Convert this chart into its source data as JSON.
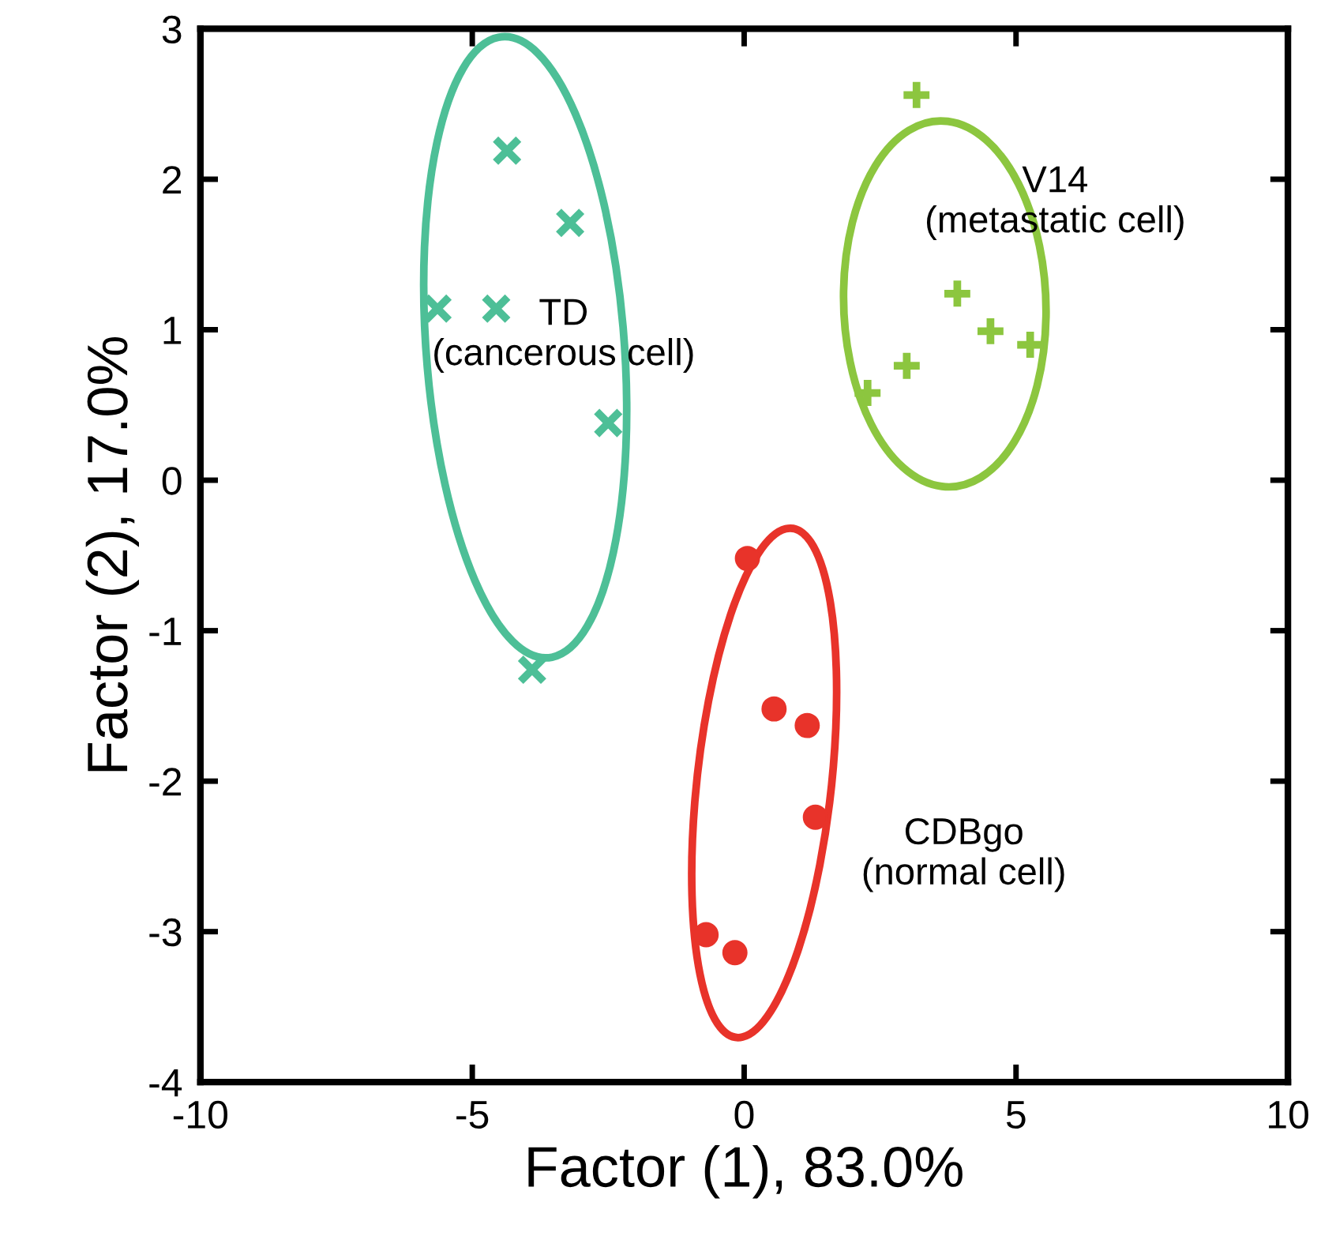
{
  "chart_data": {
    "type": "scatter",
    "xlabel": "Factor (1), 83.0%",
    "ylabel": "Factor (2), 17.0%",
    "xlim": [
      -10,
      10
    ],
    "ylim": [
      -4,
      3
    ],
    "xticks": [
      -10,
      -5,
      0,
      5,
      10
    ],
    "yticks": [
      -4,
      -3,
      -2,
      -1,
      0,
      1,
      2,
      3
    ],
    "grid": false,
    "legend": false,
    "series": [
      {
        "color": "#4dbf97",
        "marker": "cross",
        "x": [
          -4.36,
          -3.2,
          -5.64,
          -4.56,
          -2.5,
          -3.9
        ],
        "values": [
          2.19,
          1.71,
          1.14,
          1.14,
          0.38,
          -1.26
        ]
      },
      {
        "color": "#8cc63f",
        "marker": "plus",
        "x": [
          3.17,
          3.92,
          4.53,
          5.26,
          2.99,
          2.27
        ],
        "values": [
          2.56,
          1.24,
          0.99,
          0.9,
          0.76,
          0.58
        ]
      },
      {
        "color": "#e8332a",
        "marker": "circle",
        "x": [
          0.06,
          0.55,
          1.16,
          1.31,
          -0.7,
          -0.17
        ],
        "values": [
          -0.52,
          -1.52,
          -1.63,
          -2.24,
          -3.02,
          -3.14
        ]
      }
    ],
    "annotations": [
      "TD\n(cancerous cell)",
      "V14\n(metastatic cell)",
      "CDBgo\n(normal cell)"
    ]
  }
}
